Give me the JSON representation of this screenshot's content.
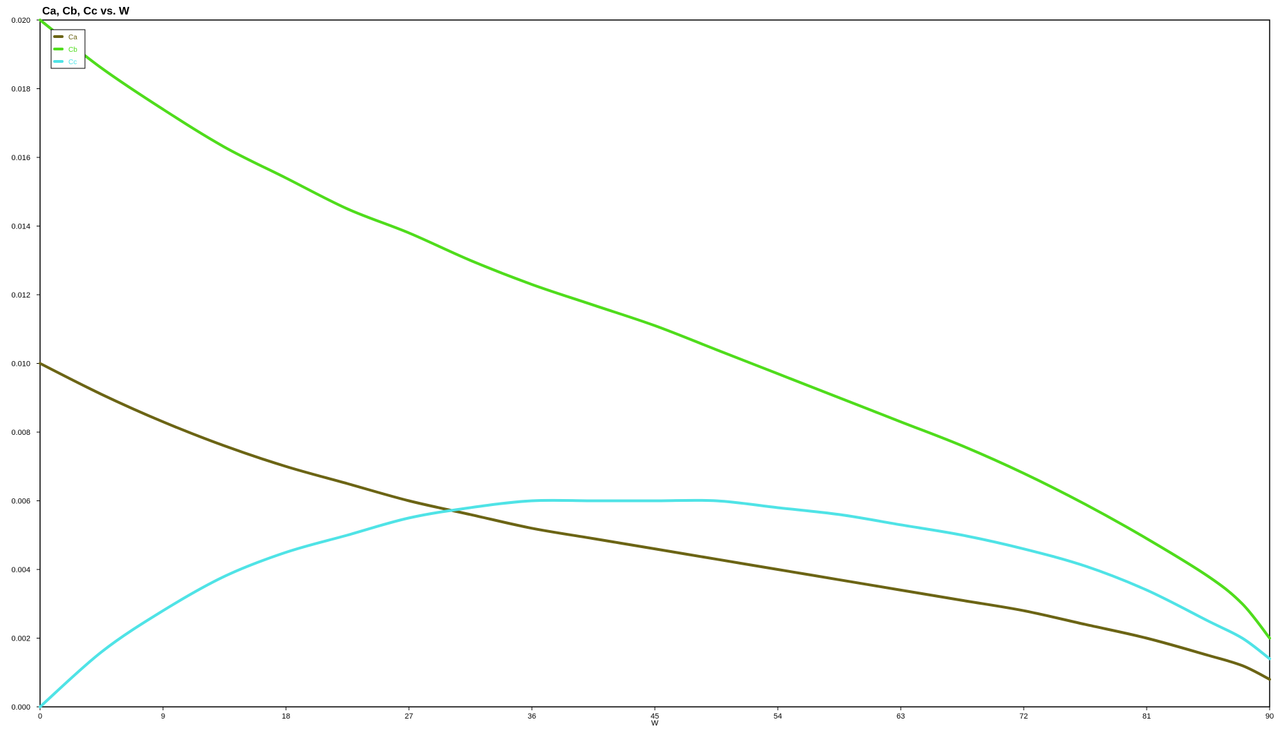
{
  "chart_data": {
    "type": "line",
    "title": "Ca, Cb, Cc vs. W",
    "xlabel": "W",
    "ylabel": "",
    "xlim": [
      0,
      90
    ],
    "ylim": [
      0,
      0.02
    ],
    "x_ticks": [
      "0",
      "9",
      "18",
      "27",
      "36",
      "45",
      "54",
      "63",
      "72",
      "81",
      "90"
    ],
    "y_ticks": [
      "0.000",
      "0.002",
      "0.004",
      "0.006",
      "0.008",
      "0.010",
      "0.012",
      "0.014",
      "0.016",
      "0.018",
      "0.020"
    ],
    "grid": false,
    "legend_position": "top-left",
    "x": [
      0,
      4.5,
      9,
      13.5,
      18,
      22.5,
      27,
      31.5,
      36,
      40.5,
      45,
      49.5,
      54,
      58.5,
      63,
      67.5,
      72,
      76.5,
      81,
      85.5,
      88,
      90
    ],
    "series": [
      {
        "name": "Ca",
        "color": "#6b6414",
        "values": [
          0.01,
          0.0091,
          0.0083,
          0.0076,
          0.007,
          0.0065,
          0.006,
          0.0056,
          0.0052,
          0.0049,
          0.0046,
          0.0043,
          0.004,
          0.0037,
          0.0034,
          0.0031,
          0.0028,
          0.0024,
          0.002,
          0.0015,
          0.0012,
          0.0008
        ]
      },
      {
        "name": "Cb",
        "color": "#4fdc1c",
        "values": [
          0.02,
          0.0186,
          0.0174,
          0.0163,
          0.0154,
          0.0145,
          0.0138,
          0.013,
          0.0123,
          0.0117,
          0.0111,
          0.0104,
          0.0097,
          0.009,
          0.0083,
          0.0076,
          0.0068,
          0.0059,
          0.0049,
          0.0038,
          0.003,
          0.002
        ]
      },
      {
        "name": "Cc",
        "color": "#4fe3e6",
        "values": [
          0.0,
          0.0016,
          0.0028,
          0.0038,
          0.0045,
          0.005,
          0.0055,
          0.0058,
          0.006,
          0.006,
          0.006,
          0.006,
          0.0058,
          0.0056,
          0.0053,
          0.005,
          0.0046,
          0.0041,
          0.0034,
          0.0025,
          0.002,
          0.0014
        ]
      }
    ]
  }
}
